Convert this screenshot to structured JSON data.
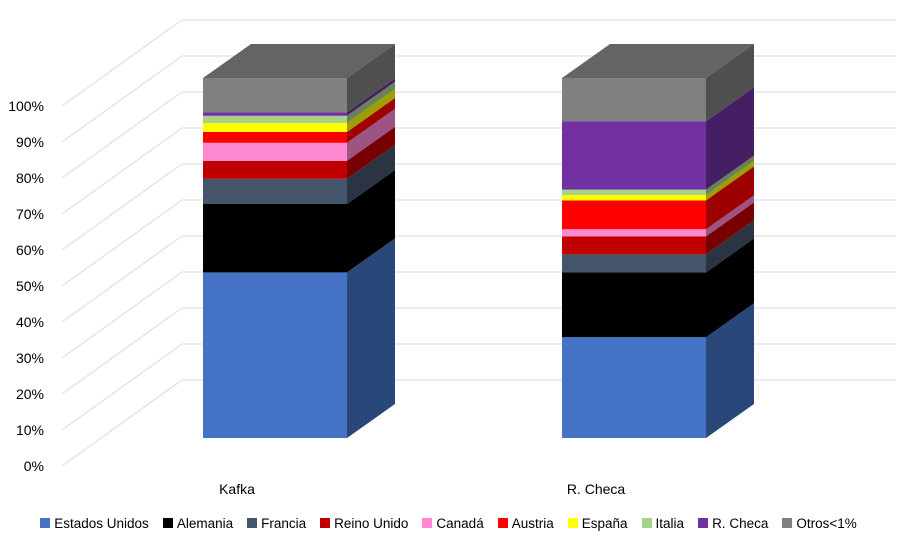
{
  "chart_data": {
    "type": "bar",
    "stacked": true,
    "three_d": true,
    "categories": [
      "Kafka",
      "R. Checa"
    ],
    "y_ticks": [
      "0%",
      "10%",
      "20%",
      "30%",
      "40%",
      "50%",
      "60%",
      "70%",
      "80%",
      "90%",
      "100%"
    ],
    "ylim": [
      0,
      100
    ],
    "grid": true,
    "legend_position": "bottom",
    "series": [
      {
        "name": "Estados Unidos",
        "color": "#4472C4",
        "values": [
          46,
          28
        ]
      },
      {
        "name": "Alemania",
        "color": "#000000",
        "values": [
          19,
          18
        ]
      },
      {
        "name": "Francia",
        "color": "#44546A",
        "values": [
          7,
          5
        ]
      },
      {
        "name": "Reino Unido",
        "color": "#C00000",
        "values": [
          5,
          5
        ]
      },
      {
        "name": "Canadá",
        "color": "#FF88D2",
        "values": [
          5,
          2
        ]
      },
      {
        "name": "Austria",
        "color": "#FF0000",
        "values": [
          3,
          8
        ]
      },
      {
        "name": "España",
        "color": "#FFFF00",
        "values": [
          2.5,
          1.5
        ]
      },
      {
        "name": "Italia",
        "color": "#A9D18E",
        "values": [
          2,
          1.5
        ]
      },
      {
        "name": "R. Checa",
        "color": "#7030A0",
        "values": [
          1,
          19
        ]
      },
      {
        "name": "Otros<1%",
        "color": "#808080",
        "values": [
          9.5,
          12
        ]
      }
    ]
  }
}
